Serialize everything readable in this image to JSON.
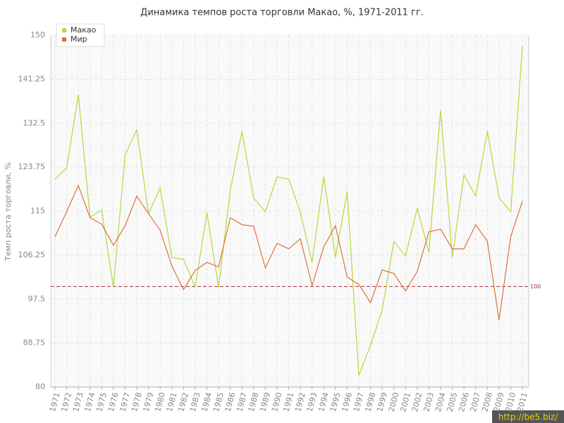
{
  "chart_data": {
    "type": "line",
    "title": "Динамика темпов роста торговли Макао, %, 1971-2011 гг.",
    "y_label": "Темп роста торговли, %",
    "categories": [
      "1971",
      "1972",
      "1973",
      "1974",
      "1975",
      "1976",
      "1977",
      "1978",
      "1979",
      "1980",
      "1981",
      "1982",
      "1983",
      "1984",
      "1985",
      "1986",
      "1987",
      "1988",
      "1989",
      "1990",
      "1991",
      "1992",
      "1993",
      "1994",
      "1995",
      "1996",
      "1997",
      "1998",
      "1999",
      "2000",
      "2001",
      "2002",
      "2003",
      "2004",
      "2005",
      "2006",
      "2007",
      "2008",
      "2009",
      "2010",
      "2011"
    ],
    "series": [
      {
        "name": "Макао",
        "color": "#b5d93a",
        "values": [
          121.4,
          123.6,
          138.2,
          113.8,
          115.2,
          99.8,
          126.2,
          131.2,
          114.5,
          119.6,
          105.8,
          105.4,
          99.9,
          114.7,
          99.8,
          119.1,
          130.9,
          117.6,
          114.9,
          121.8,
          121.4,
          114.8,
          104.8,
          121.9,
          105.8,
          118.9,
          82.3,
          88.3,
          95.3,
          109.0,
          106.1,
          115.6,
          106.8,
          135.1,
          105.8,
          122.2,
          118.0,
          130.9,
          117.7,
          114.9,
          147.9
        ]
      },
      {
        "name": "Мир",
        "color": "#e0703a",
        "values": [
          109.9,
          114.9,
          120.1,
          113.7,
          112.4,
          108.2,
          112.1,
          118.0,
          114.5,
          111.2,
          104.1,
          99.4,
          103.2,
          104.8,
          103.9,
          113.7,
          112.3,
          112.0,
          103.7,
          108.6,
          107.5,
          109.5,
          100.2,
          107.9,
          112.1,
          101.9,
          100.4,
          96.8,
          103.3,
          102.6,
          99.1,
          103.0,
          110.9,
          111.4,
          107.5,
          107.5,
          112.3,
          109.0,
          93.3,
          109.9,
          117.0
        ]
      }
    ],
    "reference_line": {
      "value": 100,
      "color": "#a0303a"
    },
    "ylim": [
      80,
      150
    ],
    "yticks": [
      80,
      88.75,
      97.5,
      106.25,
      115,
      123.75,
      132.5,
      141.25,
      150
    ],
    "grid": true,
    "legend": "top-left",
    "watermark": "http://be5.biz/"
  }
}
